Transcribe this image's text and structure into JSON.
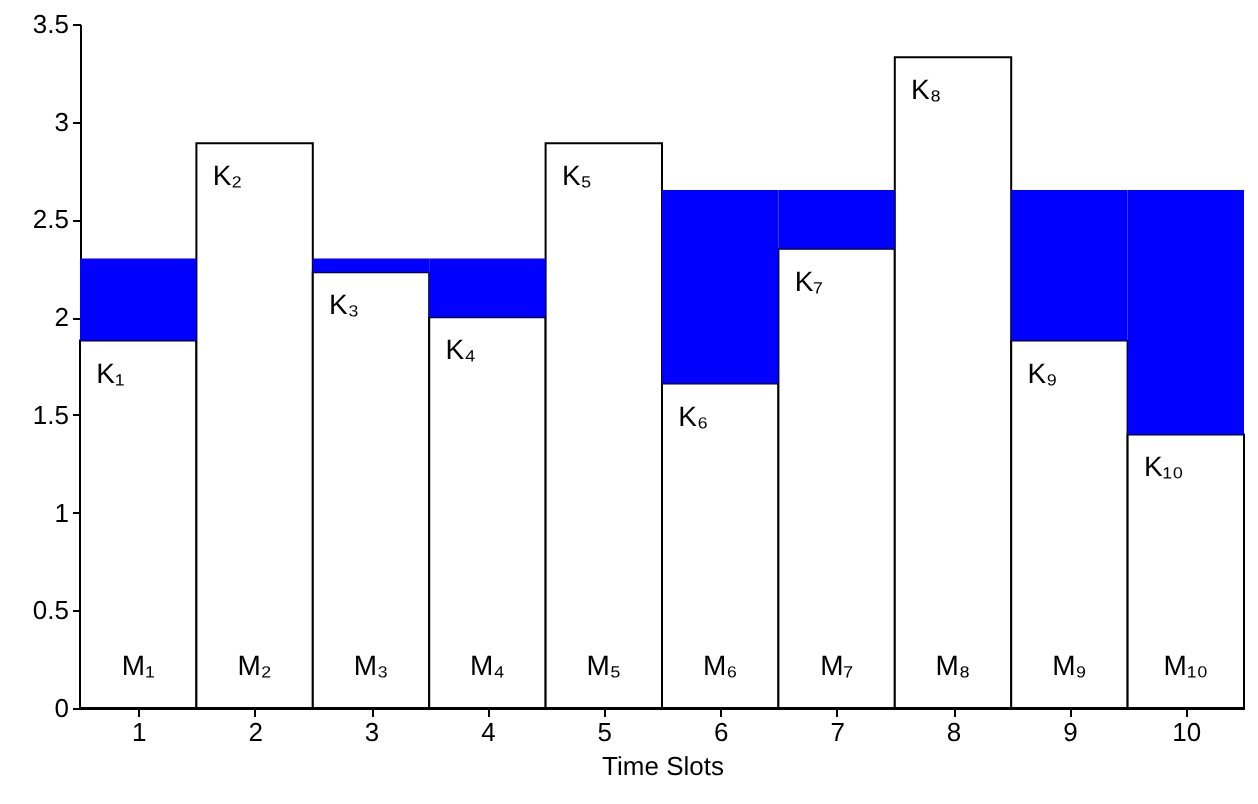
{
  "chart_data": {
    "type": "bar",
    "xlabel": "Time Slots",
    "categories": [
      "1",
      "2",
      "3",
      "4",
      "5",
      "6",
      "7",
      "8",
      "9",
      "10"
    ],
    "stacked": true,
    "series": [
      {
        "color": "#ffffff",
        "values": [
          1.88,
          2.89,
          2.23,
          2.0,
          2.89,
          1.66,
          2.35,
          3.33,
          1.88,
          1.4
        ]
      },
      {
        "color": "#0000ff",
        "values": [
          0.42,
          null,
          0.07,
          0.3,
          null,
          0.99,
          0.3,
          null,
          0.77,
          1.25
        ]
      }
    ],
    "ylim": [
      0,
      3.5
    ],
    "yticks": [
      0,
      0.5,
      1,
      1.5,
      2,
      2.5,
      3,
      3.5
    ],
    "annotations": [
      {
        "text": "K₁",
        "x": "1",
        "y": 1.88
      },
      {
        "text": "K₂",
        "x": "2",
        "y": 2.89
      },
      {
        "text": "K₃",
        "x": "3",
        "y": 2.23
      },
      {
        "text": "K₄",
        "x": "4",
        "y": 2.0
      },
      {
        "text": "K₅",
        "x": "5",
        "y": 2.89
      },
      {
        "text": "K₆",
        "x": "6",
        "y": 1.66
      },
      {
        "text": "K₇",
        "x": "7",
        "y": 2.35
      },
      {
        "text": "K₈",
        "x": "8",
        "y": 3.33
      },
      {
        "text": "K₉",
        "x": "9",
        "y": 1.88
      },
      {
        "text": "K₁₀",
        "x": "10",
        "y": 1.4
      },
      "M₁",
      "M₂",
      "M₃",
      "M₄",
      "M₅",
      "M₆",
      "M₇",
      "M₈",
      "M₉",
      "M₁₀"
    ]
  }
}
